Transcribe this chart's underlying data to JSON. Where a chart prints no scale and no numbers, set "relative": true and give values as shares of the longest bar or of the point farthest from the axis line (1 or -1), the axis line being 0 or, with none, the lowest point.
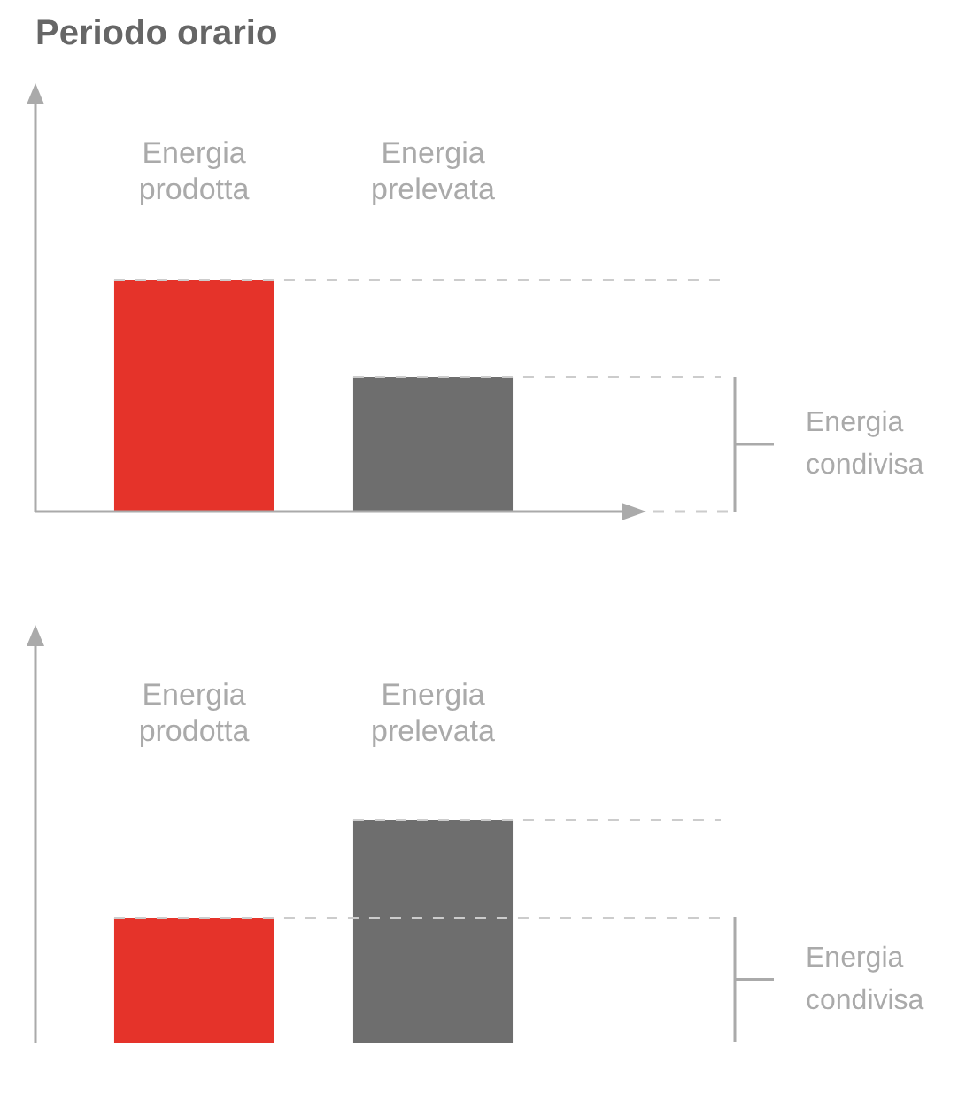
{
  "chart_data": [
    {
      "type": "bar",
      "title": "Periodo orario",
      "categories": [
        "Energia prodotta",
        "Energia prelevata"
      ],
      "values": [
        1,
        0.58
      ],
      "colors": [
        "#e5332a",
        "#6e6e6e"
      ],
      "relative": true,
      "ref_lines": [
        {
          "axis": "y",
          "value": 1,
          "color": "#cccccc",
          "line_style": "dashed"
        },
        {
          "axis": "y",
          "value": 0.58,
          "color": "#cccccc",
          "line_style": "dashed"
        }
      ],
      "annotations": [
        "Energia condivisa"
      ],
      "grid": false,
      "legend": false
    },
    {
      "type": "bar",
      "categories": [
        "Energia prodotta",
        "Energia prelevata"
      ],
      "values": [
        0.56,
        1
      ],
      "colors": [
        "#e5332a",
        "#6e6e6e"
      ],
      "relative": true,
      "ref_lines": [
        {
          "axis": "y",
          "value": 1,
          "color": "#cccccc",
          "line_style": "dashed"
        },
        {
          "axis": "y",
          "value": 0.56,
          "color": "#cccccc",
          "line_style": "dashed"
        }
      ],
      "annotations": [
        "Energia condivisa"
      ],
      "grid": false,
      "legend": false
    }
  ]
}
